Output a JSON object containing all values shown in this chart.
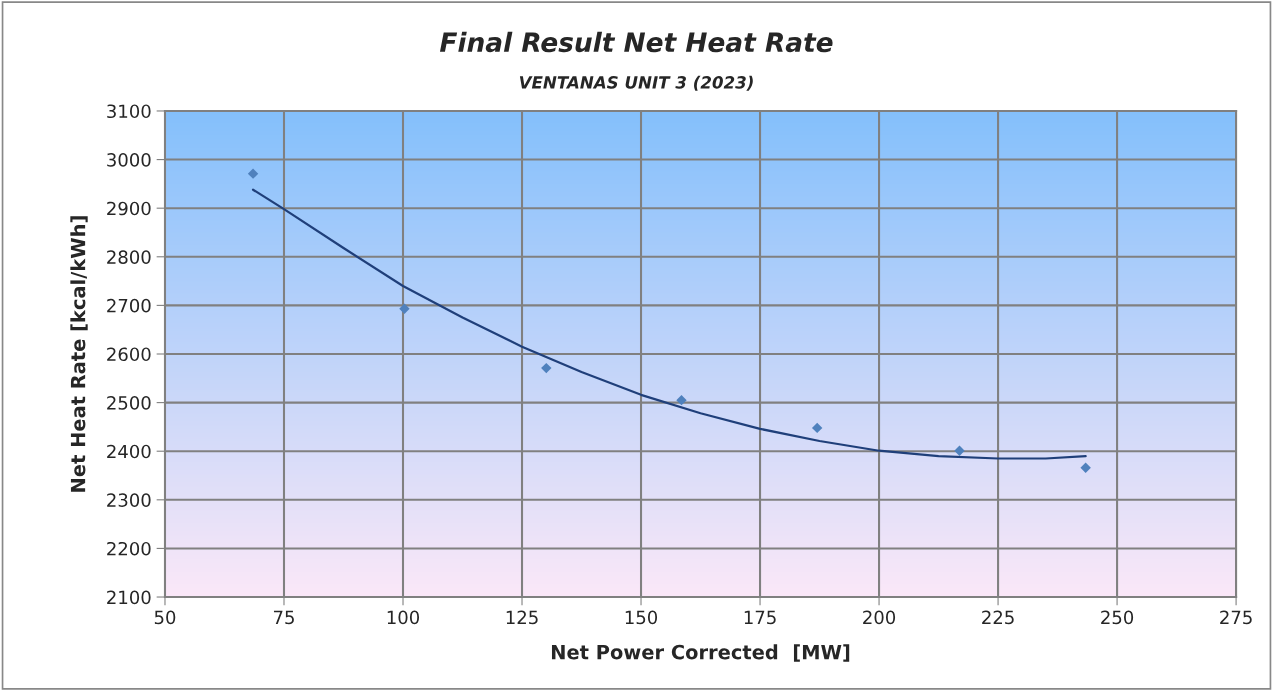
{
  "chart_data": {
    "type": "scatter",
    "title": "Final Result Net Heat Rate",
    "subtitle": "VENTANAS UNIT 3 (2023)",
    "xlabel": "Net Power Corrected  [MW]",
    "ylabel": "Net Heat Rate [kcal/kWh]",
    "xlim": [
      50,
      275
    ],
    "xticks": [
      50,
      75,
      100,
      125,
      150,
      175,
      200,
      225,
      250,
      275
    ],
    "ylim": [
      2100,
      3100
    ],
    "yticks": [
      2100,
      2200,
      2300,
      2400,
      2500,
      2600,
      2700,
      2800,
      2900,
      3000,
      3100
    ],
    "grid": true,
    "marker": "diamond",
    "series": [
      {
        "color": "#4f81bd",
        "x": [
          68.5,
          100.3,
          130.1,
          158.5,
          187,
          216.9,
          243.4
        ],
        "values": [
          2971,
          2693,
          2571,
          2505,
          2448,
          2401,
          2366
        ]
      },
      {
        "type": "line",
        "marker": "none",
        "line_style": "solid",
        "color": "#1f3f7a",
        "x": [
          68.5,
          75,
          87.5,
          100,
          112.5,
          125,
          137.5,
          150,
          162.5,
          175,
          187.5,
          200,
          212.5,
          225,
          235,
          243.4
        ],
        "values": [
          2938,
          2898,
          2818,
          2740,
          2675,
          2615,
          2563,
          2516,
          2478,
          2446,
          2421,
          2401,
          2390,
          2385,
          2385,
          2390
        ]
      }
    ]
  }
}
